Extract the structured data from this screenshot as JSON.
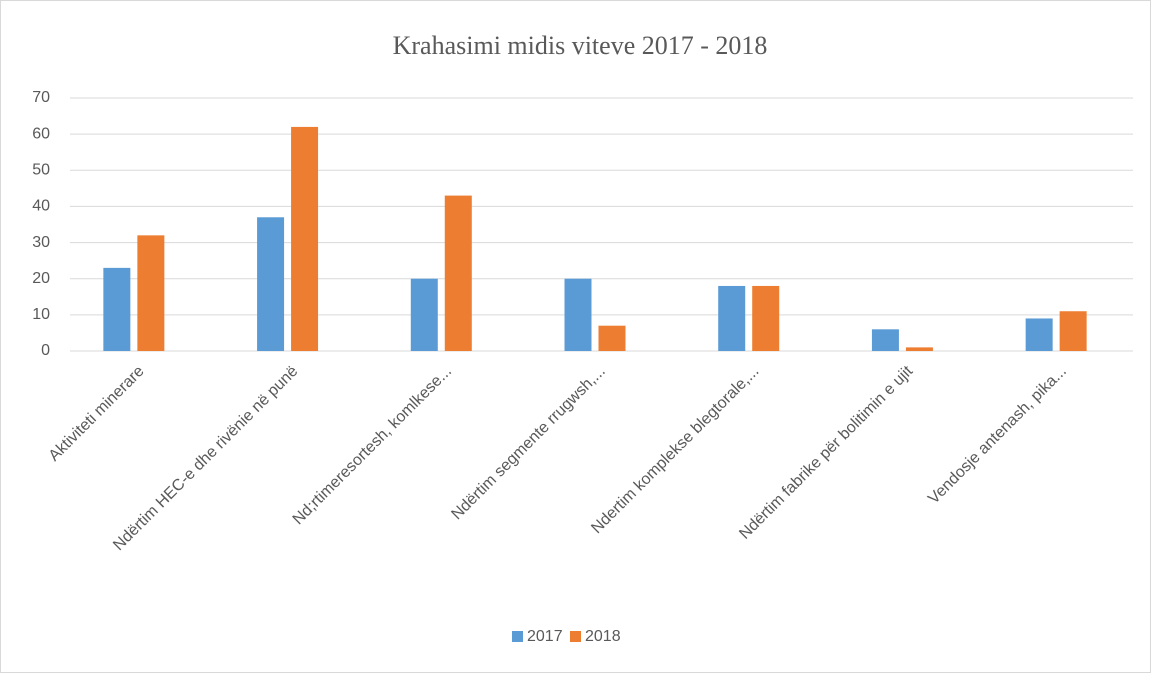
{
  "chart_data": {
    "type": "bar",
    "title": "Krahasimi midis viteve 2017 - 2018",
    "categories": [
      "Aktiviteti minerare",
      "Ndërtim HEC-e dhe rivënie në punë",
      "Nd;rtimeresortesh, komlkese...",
      "Ndërtim segmente rrugwsh,...",
      "Ndertim komplekse blegtorale,...",
      "Ndërtim fabrike për bolitimin e ujit",
      "Vendosje antenash, pika..."
    ],
    "series": [
      {
        "name": "2017",
        "color": "#5b9bd5",
        "values": [
          23,
          37,
          20,
          20,
          18,
          6,
          9
        ]
      },
      {
        "name": "2018",
        "color": "#ed7d31",
        "values": [
          32,
          62,
          43,
          7,
          18,
          1,
          11
        ]
      }
    ],
    "ylim": [
      0,
      70
    ],
    "yticks": [
      0,
      10,
      20,
      30,
      40,
      50,
      60,
      70
    ],
    "grid": true,
    "legend": "bottom"
  }
}
